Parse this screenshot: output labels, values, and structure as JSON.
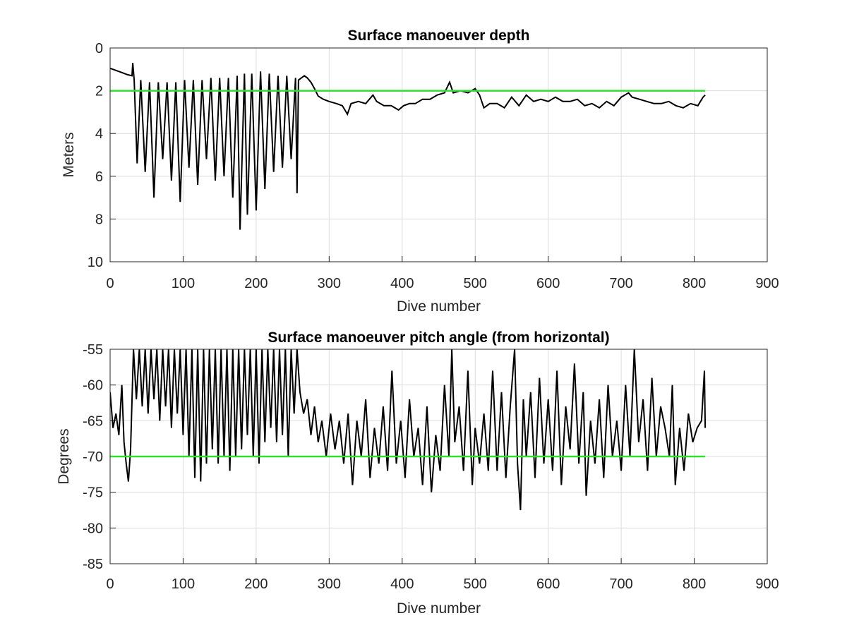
{
  "chart_data": [
    {
      "type": "line",
      "title": "Surface manoeuver depth",
      "xlabel": "Dive number",
      "ylabel": "Meters",
      "xlim": [
        0,
        900
      ],
      "ylim": [
        0,
        10
      ],
      "y_reversed": true,
      "grid": true,
      "xticks": [
        "0",
        "100",
        "200",
        "300",
        "400",
        "500",
        "600",
        "700",
        "800",
        "900"
      ],
      "yticks": [
        "0",
        "2",
        "4",
        "6",
        "8",
        "10"
      ],
      "reference_line": {
        "y": 2,
        "x_range": [
          0,
          815
        ],
        "color": "#33dd33"
      },
      "series": [
        {
          "color": "#000000",
          "start_dive": 1,
          "points": [
            [
              0,
              0.95
            ],
            [
              8,
              1.05
            ],
            [
              16,
              1.15
            ],
            [
              24,
              1.25
            ],
            [
              30,
              1.3
            ],
            [
              31,
              0.7
            ],
            [
              33,
              1.5
            ],
            [
              37,
              5.4
            ],
            [
              42,
              1.5
            ],
            [
              48,
              5.8
            ],
            [
              54,
              1.6
            ],
            [
              60,
              7.0
            ],
            [
              66,
              1.6
            ],
            [
              72,
              5.2
            ],
            [
              78,
              1.6
            ],
            [
              84,
              6.2
            ],
            [
              90,
              1.6
            ],
            [
              96,
              7.2
            ],
            [
              102,
              1.5
            ],
            [
              108,
              5.6
            ],
            [
              114,
              1.5
            ],
            [
              120,
              6.4
            ],
            [
              126,
              1.5
            ],
            [
              132,
              5.2
            ],
            [
              138,
              1.4
            ],
            [
              144,
              6.2
            ],
            [
              150,
              1.4
            ],
            [
              156,
              6.0
            ],
            [
              162,
              1.4
            ],
            [
              168,
              7.0
            ],
            [
              174,
              1.3
            ],
            [
              178,
              8.5
            ],
            [
              184,
              1.2
            ],
            [
              188,
              7.8
            ],
            [
              194,
              1.2
            ],
            [
              200,
              7.6
            ],
            [
              206,
              1.1
            ],
            [
              212,
              6.6
            ],
            [
              218,
              1.2
            ],
            [
              224,
              5.8
            ],
            [
              230,
              1.3
            ],
            [
              236,
              5.6
            ],
            [
              242,
              1.3
            ],
            [
              248,
              5.2
            ],
            [
              254,
              1.4
            ],
            [
              256,
              6.8
            ],
            [
              258,
              1.5
            ],
            [
              262,
              1.4
            ],
            [
              266,
              1.3
            ],
            [
              270,
              1.4
            ],
            [
              275,
              1.6
            ],
            [
              280,
              1.9
            ],
            [
              285,
              2.25
            ],
            [
              292,
              2.4
            ],
            [
              300,
              2.5
            ],
            [
              310,
              2.6
            ],
            [
              318,
              2.7
            ],
            [
              325,
              3.1
            ],
            [
              330,
              2.6
            ],
            [
              340,
              2.5
            ],
            [
              350,
              2.6
            ],
            [
              360,
              2.2
            ],
            [
              365,
              2.5
            ],
            [
              375,
              2.7
            ],
            [
              385,
              2.7
            ],
            [
              395,
              2.9
            ],
            [
              402,
              2.7
            ],
            [
              410,
              2.6
            ],
            [
              418,
              2.6
            ],
            [
              428,
              2.4
            ],
            [
              438,
              2.4
            ],
            [
              448,
              2.2
            ],
            [
              458,
              2.1
            ],
            [
              465,
              1.6
            ],
            [
              470,
              2.1
            ],
            [
              480,
              2.0
            ],
            [
              490,
              2.1
            ],
            [
              500,
              1.9
            ],
            [
              506,
              2.2
            ],
            [
              512,
              2.8
            ],
            [
              520,
              2.6
            ],
            [
              530,
              2.6
            ],
            [
              540,
              2.8
            ],
            [
              550,
              2.3
            ],
            [
              560,
              2.7
            ],
            [
              570,
              2.2
            ],
            [
              580,
              2.5
            ],
            [
              590,
              2.4
            ],
            [
              600,
              2.5
            ],
            [
              610,
              2.3
            ],
            [
              620,
              2.5
            ],
            [
              630,
              2.5
            ],
            [
              640,
              2.4
            ],
            [
              650,
              2.7
            ],
            [
              660,
              2.6
            ],
            [
              670,
              2.8
            ],
            [
              680,
              2.5
            ],
            [
              690,
              2.7
            ],
            [
              700,
              2.3
            ],
            [
              710,
              2.1
            ],
            [
              715,
              2.3
            ],
            [
              725,
              2.4
            ],
            [
              735,
              2.5
            ],
            [
              745,
              2.6
            ],
            [
              755,
              2.6
            ],
            [
              765,
              2.5
            ],
            [
              775,
              2.7
            ],
            [
              785,
              2.8
            ],
            [
              795,
              2.6
            ],
            [
              805,
              2.7
            ],
            [
              812,
              2.3
            ],
            [
              815,
              2.2
            ]
          ]
        }
      ]
    },
    {
      "type": "line",
      "title": "Surface manoeuver pitch angle (from horizontal)",
      "xlabel": "Dive number",
      "ylabel": "Degrees",
      "xlim": [
        0,
        900
      ],
      "ylim": [
        -85,
        -55
      ],
      "grid": true,
      "xticks": [
        "0",
        "100",
        "200",
        "300",
        "400",
        "500",
        "600",
        "700",
        "800",
        "900"
      ],
      "yticks": [
        "-55",
        "-60",
        "-65",
        "-70",
        "-75",
        "-80",
        "-85"
      ],
      "reference_line": {
        "y": -70,
        "x_range": [
          0,
          815
        ],
        "color": "#33dd33"
      },
      "series": [
        {
          "color": "#000000",
          "points": [
            [
              0,
              -61
            ],
            [
              4,
              -66
            ],
            [
              8,
              -64
            ],
            [
              12,
              -67
            ],
            [
              16,
              -60
            ],
            [
              19,
              -68
            ],
            [
              22,
              -71
            ],
            [
              25,
              -73.5
            ],
            [
              28,
              -69
            ],
            [
              32,
              -55
            ],
            [
              36,
              -62
            ],
            [
              40,
              -55
            ],
            [
              44,
              -63
            ],
            [
              48,
              -55
            ],
            [
              52,
              -64
            ],
            [
              56,
              -55
            ],
            [
              60,
              -62
            ],
            [
              64,
              -55
            ],
            [
              68,
              -65
            ],
            [
              72,
              -55
            ],
            [
              76,
              -63
            ],
            [
              80,
              -55
            ],
            [
              84,
              -66
            ],
            [
              88,
              -55
            ],
            [
              92,
              -64
            ],
            [
              96,
              -55
            ],
            [
              100,
              -67
            ],
            [
              104,
              -55
            ],
            [
              108,
              -70
            ],
            [
              112,
              -55
            ],
            [
              116,
              -73
            ],
            [
              120,
              -55
            ],
            [
              124,
              -73.5
            ],
            [
              128,
              -55
            ],
            [
              132,
              -71
            ],
            [
              136,
              -55
            ],
            [
              140,
              -69
            ],
            [
              144,
              -55
            ],
            [
              148,
              -71
            ],
            [
              152,
              -55
            ],
            [
              156,
              -70
            ],
            [
              160,
              -55
            ],
            [
              164,
              -72
            ],
            [
              168,
              -55
            ],
            [
              172,
              -70
            ],
            [
              176,
              -55
            ],
            [
              180,
              -69
            ],
            [
              184,
              -55
            ],
            [
              188,
              -67
            ],
            [
              192,
              -55
            ],
            [
              196,
              -70
            ],
            [
              200,
              -55
            ],
            [
              204,
              -71
            ],
            [
              208,
              -55
            ],
            [
              212,
              -68
            ],
            [
              216,
              -55
            ],
            [
              220,
              -66
            ],
            [
              224,
              -55
            ],
            [
              228,
              -68
            ],
            [
              232,
              -55
            ],
            [
              236,
              -67
            ],
            [
              240,
              -55
            ],
            [
              244,
              -70
            ],
            [
              248,
              -55
            ],
            [
              252,
              -64
            ],
            [
              256,
              -55
            ],
            [
              260,
              -61
            ],
            [
              265,
              -64
            ],
            [
              270,
              -62
            ],
            [
              275,
              -67
            ],
            [
              280,
              -63
            ],
            [
              285,
              -68
            ],
            [
              290,
              -65
            ],
            [
              296,
              -70
            ],
            [
              302,
              -64
            ],
            [
              308,
              -69
            ],
            [
              314,
              -65
            ],
            [
              320,
              -71
            ],
            [
              326,
              -64
            ],
            [
              332,
              -74
            ],
            [
              338,
              -65
            ],
            [
              344,
              -70
            ],
            [
              350,
              -62
            ],
            [
              356,
              -73
            ],
            [
              362,
              -66
            ],
            [
              368,
              -71
            ],
            [
              374,
              -63
            ],
            [
              380,
              -72
            ],
            [
              386,
              -58
            ],
            [
              392,
              -71
            ],
            [
              398,
              -65
            ],
            [
              404,
              -73
            ],
            [
              410,
              -62
            ],
            [
              416,
              -70
            ],
            [
              422,
              -66
            ],
            [
              428,
              -74
            ],
            [
              434,
              -63
            ],
            [
              440,
              -75
            ],
            [
              446,
              -67
            ],
            [
              452,
              -72
            ],
            [
              458,
              -60
            ],
            [
              464,
              -70
            ],
            [
              468,
              -55
            ],
            [
              472,
              -68
            ],
            [
              478,
              -63
            ],
            [
              484,
              -72
            ],
            [
              490,
              -58
            ],
            [
              496,
              -74
            ],
            [
              500,
              -66
            ],
            [
              506,
              -71
            ],
            [
              512,
              -64
            ],
            [
              518,
              -72
            ],
            [
              524,
              -58
            ],
            [
              530,
              -72
            ],
            [
              536,
              -61
            ],
            [
              542,
              -73
            ],
            [
              548,
              -63
            ],
            [
              554,
              -55
            ],
            [
              558,
              -71
            ],
            [
              562,
              -77.5
            ],
            [
              566,
              -62
            ],
            [
              570,
              -70
            ],
            [
              576,
              -61
            ],
            [
              582,
              -73
            ],
            [
              588,
              -59
            ],
            [
              594,
              -71
            ],
            [
              600,
              -62
            ],
            [
              606,
              -72
            ],
            [
              612,
              -58
            ],
            [
              618,
              -74
            ],
            [
              624,
              -63
            ],
            [
              630,
              -69
            ],
            [
              636,
              -57
            ],
            [
              642,
              -71
            ],
            [
              648,
              -61
            ],
            [
              652,
              -75.5
            ],
            [
              658,
              -65
            ],
            [
              664,
              -71
            ],
            [
              670,
              -62
            ],
            [
              676,
              -73
            ],
            [
              682,
              -60
            ],
            [
              688,
              -70
            ],
            [
              694,
              -65
            ],
            [
              700,
              -72
            ],
            [
              706,
              -60
            ],
            [
              712,
              -70
            ],
            [
              718,
              -55
            ],
            [
              724,
              -68
            ],
            [
              730,
              -62
            ],
            [
              736,
              -72
            ],
            [
              742,
              -59
            ],
            [
              748,
              -70
            ],
            [
              754,
              -63
            ],
            [
              760,
              -66
            ],
            [
              766,
              -70
            ],
            [
              770,
              -60
            ],
            [
              774,
              -74
            ],
            [
              780,
              -66
            ],
            [
              786,
              -72
            ],
            [
              792,
              -64
            ],
            [
              798,
              -68
            ],
            [
              804,
              -66
            ],
            [
              810,
              -65
            ],
            [
              814,
              -58
            ],
            [
              815,
              -66
            ]
          ]
        }
      ]
    }
  ]
}
